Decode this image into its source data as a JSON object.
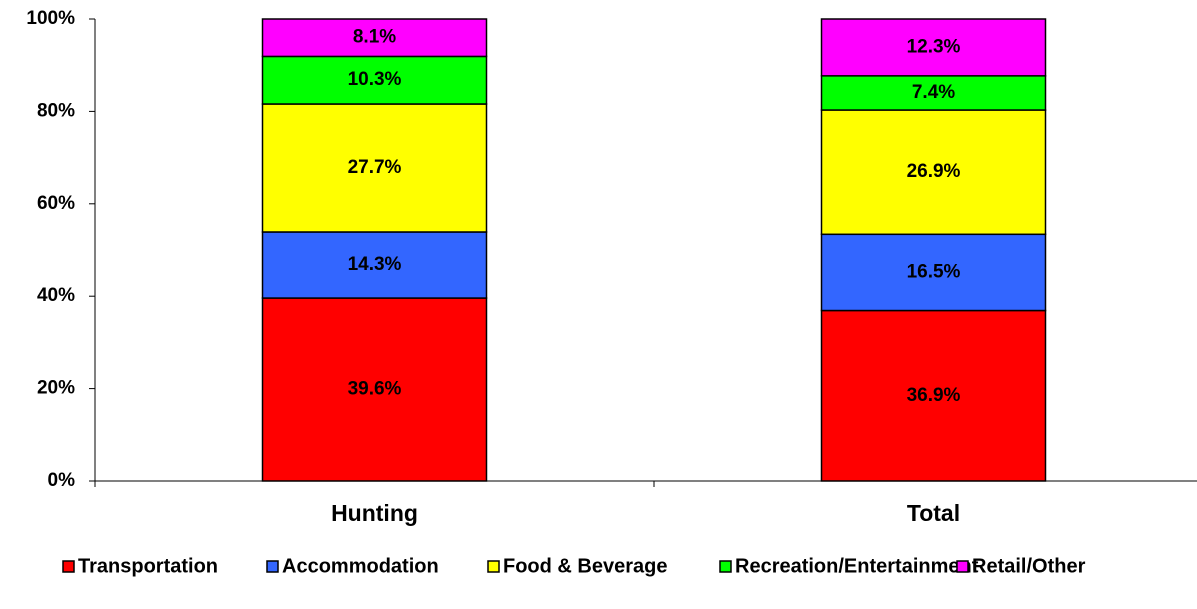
{
  "chart_data": {
    "type": "stacked_bar",
    "categories": [
      "Hunting",
      "Total"
    ],
    "series": [
      {
        "name": "Transportation",
        "color": "#ff0000",
        "values": [
          39.6,
          36.9
        ],
        "value_labels": [
          "39.6%",
          "36.9%"
        ]
      },
      {
        "name": "Accommodation",
        "color": "#3366ff",
        "values": [
          14.3,
          16.5
        ],
        "value_labels": [
          "14.3%",
          "16.5%"
        ]
      },
      {
        "name": "Food & Beverage",
        "color": "#ffff00",
        "values": [
          27.7,
          26.9
        ],
        "value_labels": [
          "27.7%",
          "26.9%"
        ]
      },
      {
        "name": "Recreation/Entertainment",
        "color": "#00ff00",
        "values": [
          10.3,
          7.4
        ],
        "value_labels": [
          "10.3%",
          "7.4%"
        ]
      },
      {
        "name": "Retail/Other",
        "color": "#ff00ff",
        "values": [
          8.1,
          12.3
        ],
        "value_labels": [
          "8.1%",
          "12.3%"
        ]
      }
    ],
    "ylim": [
      0,
      100
    ],
    "yticks": [
      {
        "value": 0,
        "label": "0%"
      },
      {
        "value": 20,
        "label": "20%"
      },
      {
        "value": 40,
        "label": "40%"
      },
      {
        "value": 60,
        "label": "60%"
      },
      {
        "value": 80,
        "label": "80%"
      },
      {
        "value": 100,
        "label": "100%"
      }
    ],
    "legend": "bottom"
  }
}
